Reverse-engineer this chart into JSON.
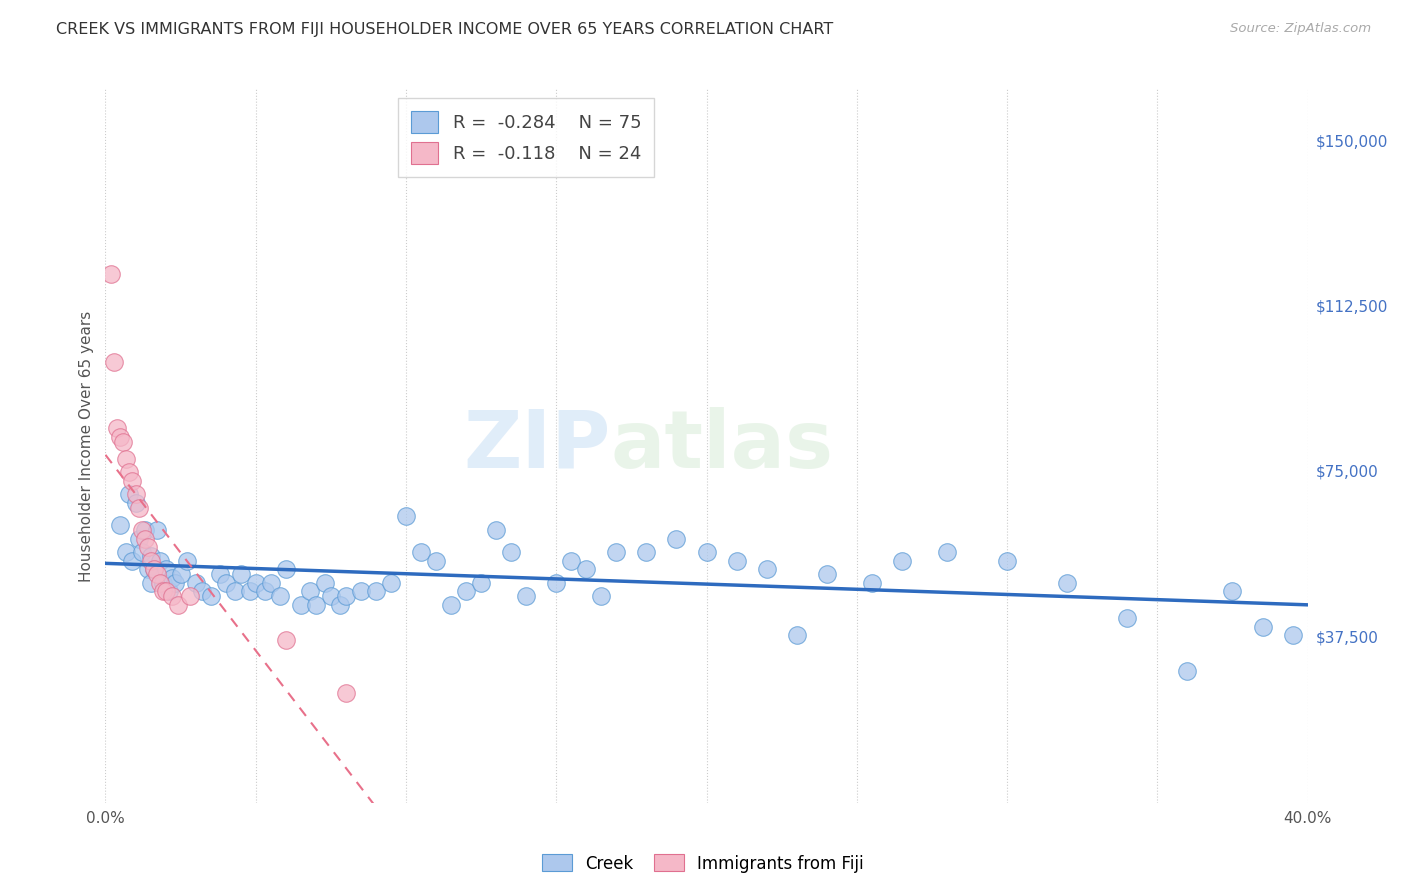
{
  "title": "CREEK VS IMMIGRANTS FROM FIJI HOUSEHOLDER INCOME OVER 65 YEARS CORRELATION CHART",
  "source": "Source: ZipAtlas.com",
  "ylabel": "Householder Income Over 65 years",
  "xlim": [
    0.0,
    0.4
  ],
  "ylim": [
    0,
    162000
  ],
  "xticks": [
    0.0,
    0.05,
    0.1,
    0.15,
    0.2,
    0.25,
    0.3,
    0.35,
    0.4
  ],
  "xticklabels": [
    "0.0%",
    "",
    "",
    "",
    "",
    "",
    "",
    "",
    "40.0%"
  ],
  "ytick_right_labels": [
    "$150,000",
    "$112,500",
    "$75,000",
    "$37,500"
  ],
  "ytick_right_values": [
    150000,
    112500,
    75000,
    37500
  ],
  "watermark_zip": "ZIP",
  "watermark_atlas": "atlas",
  "legend_creek_R": "-0.284",
  "legend_creek_N": "75",
  "legend_fiji_R": "-0.118",
  "legend_fiji_N": "24",
  "creek_face_color": "#adc8ed",
  "creek_edge_color": "#5b9bd5",
  "fiji_face_color": "#f5b8c8",
  "fiji_edge_color": "#e07090",
  "creek_line_color": "#2e6bbf",
  "fiji_line_color": "#e8708a",
  "grid_color": "#cccccc",
  "creek_scatter_x": [
    0.005,
    0.007,
    0.008,
    0.009,
    0.01,
    0.011,
    0.012,
    0.013,
    0.014,
    0.015,
    0.015,
    0.016,
    0.017,
    0.018,
    0.019,
    0.02,
    0.021,
    0.022,
    0.023,
    0.025,
    0.027,
    0.03,
    0.032,
    0.035,
    0.038,
    0.04,
    0.043,
    0.045,
    0.048,
    0.05,
    0.053,
    0.055,
    0.058,
    0.06,
    0.065,
    0.068,
    0.07,
    0.073,
    0.075,
    0.078,
    0.08,
    0.085,
    0.09,
    0.095,
    0.1,
    0.105,
    0.11,
    0.115,
    0.12,
    0.125,
    0.13,
    0.135,
    0.14,
    0.15,
    0.155,
    0.16,
    0.165,
    0.17,
    0.18,
    0.19,
    0.2,
    0.21,
    0.22,
    0.23,
    0.24,
    0.255,
    0.265,
    0.28,
    0.3,
    0.32,
    0.34,
    0.36,
    0.375,
    0.385,
    0.395
  ],
  "creek_scatter_y": [
    63000,
    57000,
    70000,
    55000,
    68000,
    60000,
    57000,
    62000,
    53000,
    56000,
    50000,
    53000,
    62000,
    55000,
    50000,
    53000,
    48000,
    51000,
    50000,
    52000,
    55000,
    50000,
    48000,
    47000,
    52000,
    50000,
    48000,
    52000,
    48000,
    50000,
    48000,
    50000,
    47000,
    53000,
    45000,
    48000,
    45000,
    50000,
    47000,
    45000,
    47000,
    48000,
    48000,
    50000,
    65000,
    57000,
    55000,
    45000,
    48000,
    50000,
    62000,
    57000,
    47000,
    50000,
    55000,
    53000,
    47000,
    57000,
    57000,
    60000,
    57000,
    55000,
    53000,
    38000,
    52000,
    50000,
    55000,
    57000,
    55000,
    50000,
    42000,
    30000,
    48000,
    40000,
    38000
  ],
  "fiji_scatter_x": [
    0.002,
    0.003,
    0.004,
    0.005,
    0.006,
    0.007,
    0.008,
    0.009,
    0.01,
    0.011,
    0.012,
    0.013,
    0.014,
    0.015,
    0.016,
    0.017,
    0.018,
    0.019,
    0.02,
    0.022,
    0.024,
    0.028,
    0.06,
    0.08
  ],
  "fiji_scatter_y": [
    120000,
    100000,
    85000,
    83000,
    82000,
    78000,
    75000,
    73000,
    70000,
    67000,
    62000,
    60000,
    58000,
    55000,
    53000,
    52000,
    50000,
    48000,
    48000,
    47000,
    45000,
    47000,
    37000,
    25000
  ]
}
